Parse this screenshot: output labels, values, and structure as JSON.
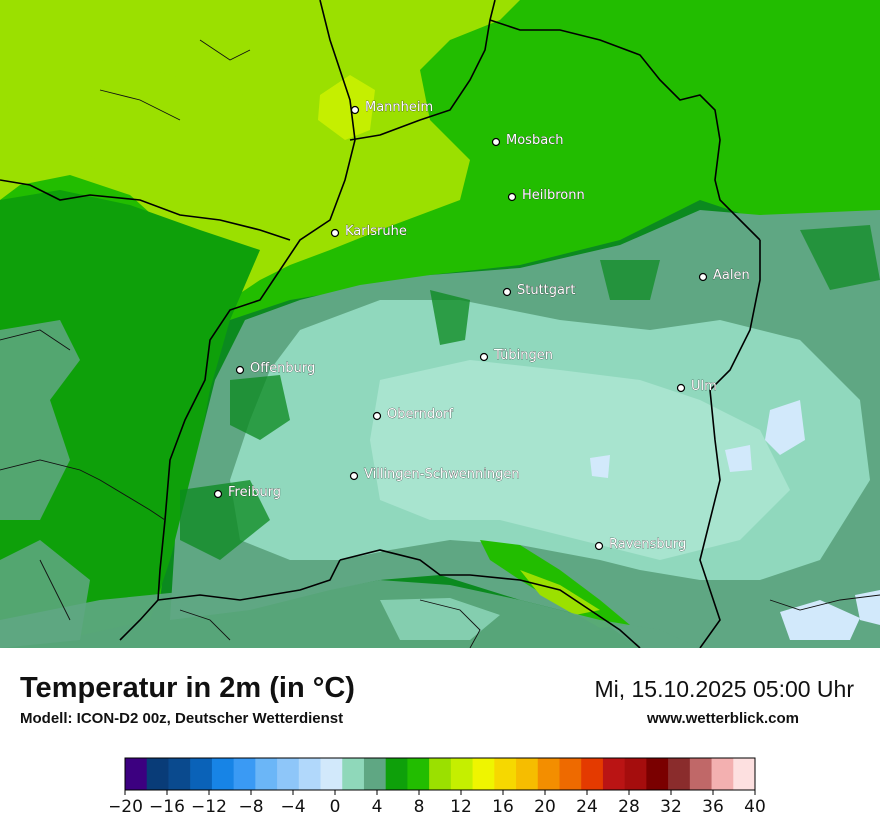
{
  "title": "Temperatur in 2m (in °C)",
  "subtitle": "Modell: ICON-D2 00z, Deutscher Wetterdienst",
  "datetime": "Mi, 15.10.2025 05:00 Uhr",
  "website": "www.wetterblick.com",
  "colors": {
    "lime": "#9be000",
    "lime_light": "#c5ef00",
    "green_bright": "#22bd00",
    "green_mid": "#0ea00a",
    "green_dark": "#0b8a1f",
    "grey_green": "#5fa783",
    "mint": "#90d8bd",
    "mint_light": "#a8e4cf",
    "pale_blue": "#d2e9fb",
    "border": "#000000",
    "city_dot": "#ffffff"
  },
  "cities": [
    {
      "name": "Mannheim"
    },
    {
      "name": "Mosbach"
    },
    {
      "name": "Heilbronn"
    },
    {
      "name": "Karlsruhe"
    },
    {
      "name": "Aalen"
    },
    {
      "name": "Stuttgart"
    },
    {
      "name": "Tübingen"
    },
    {
      "name": "Offenburg"
    },
    {
      "name": "Ulm"
    },
    {
      "name": "Oberndorf"
    },
    {
      "name": "Villingen-Schwenningen"
    },
    {
      "name": "Freiburg"
    },
    {
      "name": "Ravensburg"
    }
  ],
  "legend": {
    "unit": "°C",
    "min": -20,
    "max": 40,
    "step": 2.5,
    "colors": [
      "#3c0080",
      "#093c78",
      "#0a4a8e",
      "#0a62b8",
      "#1784e6",
      "#3a9af4",
      "#6bb6f7",
      "#8ec6f9",
      "#b1d8fb",
      "#d2e9fb",
      "#8fd8ba",
      "#5fa783",
      "#0ea00a",
      "#22bd00",
      "#9be000",
      "#c5ef00",
      "#eff500",
      "#f6d800",
      "#f6bd00",
      "#f38e00",
      "#ee6a00",
      "#e43a00",
      "#ba1414",
      "#a50d0d",
      "#7a0000",
      "#8a2c2c",
      "#c06868",
      "#f3b0b0",
      "#fde0e0"
    ],
    "ticks": [
      "−20",
      "−16",
      "−12",
      "−8",
      "−4",
      "0",
      "4",
      "8",
      "12",
      "16",
      "20",
      "24",
      "28",
      "32",
      "36",
      "40"
    ]
  }
}
